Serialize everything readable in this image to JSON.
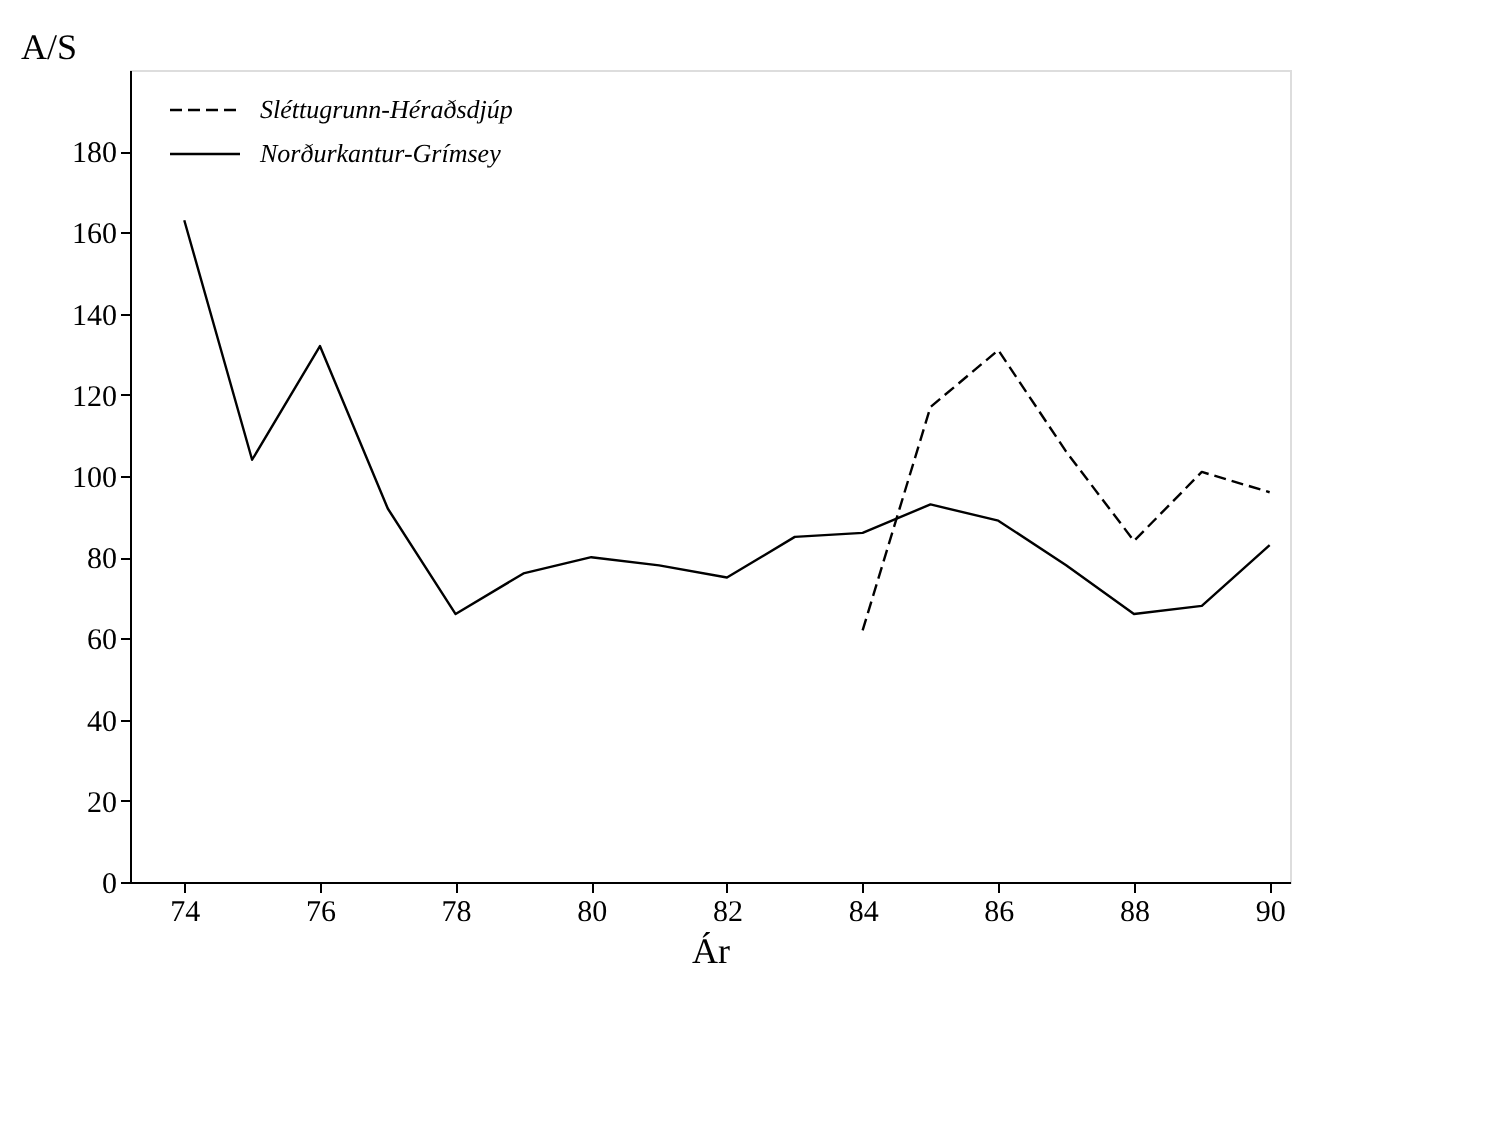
{
  "chart_data": {
    "type": "line",
    "xlabel": "Ár",
    "ylabel": "A/S",
    "x": [
      74,
      75,
      76,
      77,
      78,
      79,
      80,
      81,
      82,
      83,
      84,
      85,
      86,
      87,
      88,
      89,
      90
    ],
    "series": [
      {
        "name": "Sléttugrunn-Héraðsdjúp",
        "color": "#000000",
        "line_style": "dashed",
        "x": [
          84,
          85,
          86,
          87,
          88,
          89,
          90
        ],
        "values": [
          62,
          117,
          131,
          106,
          84,
          101,
          96
        ]
      },
      {
        "name": "Norðurkantur-Grímsey",
        "color": "#000000",
        "line_style": "solid",
        "values": [
          163,
          104,
          132,
          92,
          66,
          76,
          80,
          78,
          75,
          85,
          86,
          93,
          89,
          78,
          66,
          68,
          83
        ]
      }
    ],
    "xlim": [
      73.2,
      90.3
    ],
    "xticks": [
      74,
      76,
      78,
      80,
      82,
      84,
      86,
      88,
      90
    ],
    "ylim": [
      0,
      200
    ],
    "yticks": [
      0,
      20,
      40,
      60,
      80,
      100,
      120,
      140,
      160,
      180
    ],
    "grid": false,
    "legend": "top left",
    "marker": "none"
  }
}
